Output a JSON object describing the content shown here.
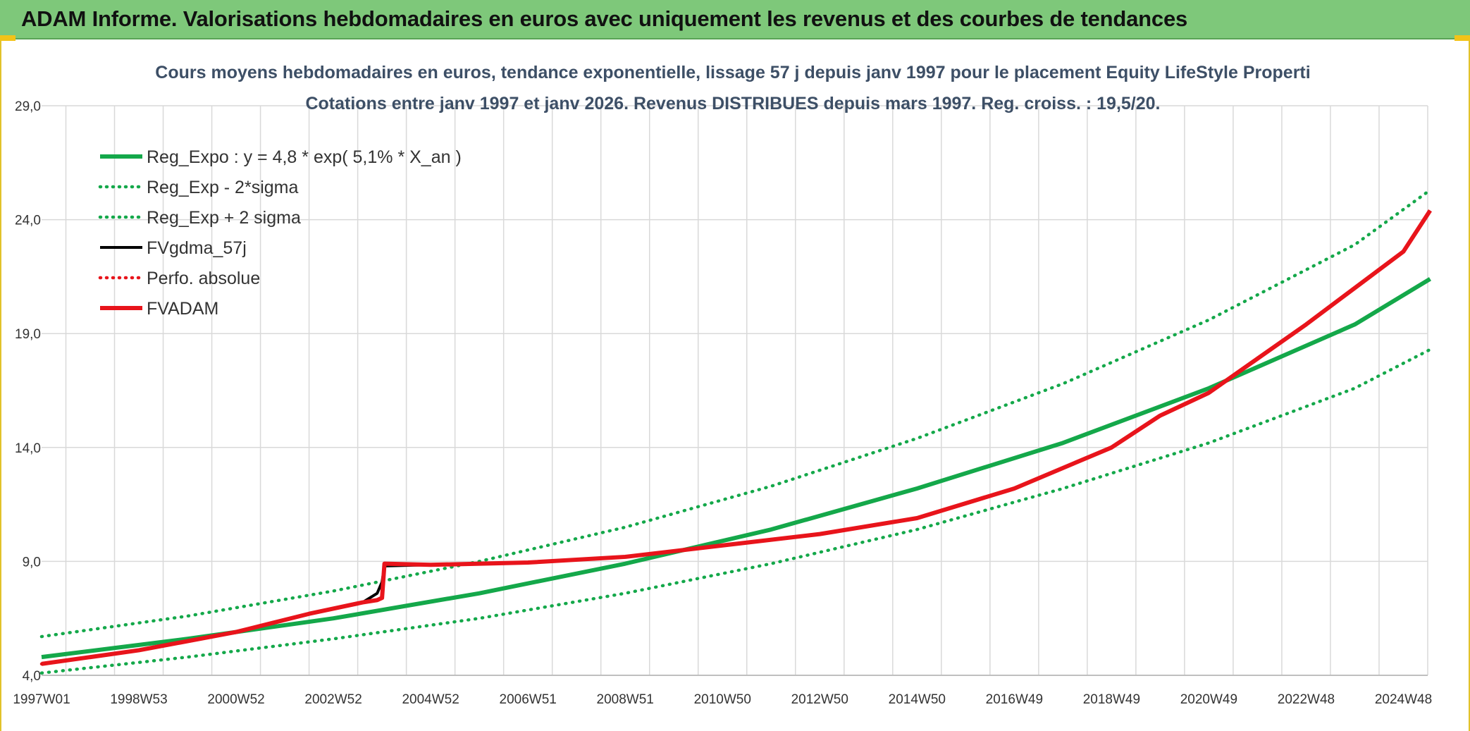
{
  "header": {
    "title": "ADAM Informe. Valorisations hebdomadaires en euros avec uniquement les revenus et des courbes de tendances"
  },
  "colors": {
    "banner": "#7ec87a",
    "trend": "#14a84a",
    "smoothed": "#000000",
    "adam": "#e8141b",
    "grid": "#d9d9d9"
  },
  "chart_data": {
    "type": "line",
    "title": "Cours moyens hebdomadaires en euros, tendance exponentielle, lissage 57 j depuis janv 1997 pour le placement Equity LifeStyle Properti",
    "subtitle": "Cotations entre janv 1997 et janv 2026. Revenus DISTRIBUES depuis mars 1997. Reg. croiss. : 19,5/20.",
    "xlabel": "",
    "ylabel": "",
    "ylim": [
      4.0,
      29.0
    ],
    "y_ticks": [
      "4,0",
      "9,0",
      "14,0",
      "19,0",
      "24,0",
      "29,0"
    ],
    "y_tick_values": [
      4,
      9,
      14,
      19,
      24,
      29
    ],
    "x_ticks": [
      "1997W01",
      "1998W53",
      "2000W52",
      "2002W52",
      "2004W52",
      "2006W51",
      "2008W51",
      "2010W50",
      "2012W50",
      "2014W50",
      "2016W49",
      "2018W49",
      "2020W49",
      "2022W48",
      "2024W48"
    ],
    "x_tick_years": [
      1997.0,
      1999.0,
      2001.0,
      2003.0,
      2005.0,
      2007.0,
      2009.0,
      2011.0,
      2013.0,
      2015.0,
      2017.0,
      2019.0,
      2021.0,
      2023.0,
      2025.0
    ],
    "x_range_years": [
      1997.0,
      2026.0
    ],
    "grid": true,
    "legend_position": "top-left",
    "series": [
      {
        "name": "Reg_Expo : y = 4,8 * exp( 5,1% *  X_an )",
        "style": "solid-thick",
        "color": "#14a84a",
        "x": [
          1997.0,
          2000.0,
          2003.0,
          2006.0,
          2009.0,
          2012.0,
          2015.0,
          2018.0,
          2021.0,
          2024.0,
          2026.0
        ],
        "values": [
          4.8,
          5.6,
          6.5,
          7.6,
          8.9,
          10.4,
          12.2,
          14.2,
          16.6,
          19.4,
          21.4
        ]
      },
      {
        "name": "Reg_Exp - 2*sigma",
        "style": "dotted",
        "color": "#14a84a",
        "x": [
          1997.0,
          2000.0,
          2003.0,
          2006.0,
          2009.0,
          2012.0,
          2015.0,
          2018.0,
          2021.0,
          2024.0,
          2026.0
        ],
        "values": [
          4.1,
          4.8,
          5.6,
          6.5,
          7.6,
          8.9,
          10.4,
          12.2,
          14.2,
          16.6,
          18.3
        ]
      },
      {
        "name": "Reg_Exp + 2 sigma",
        "style": "dotted",
        "color": "#14a84a",
        "x": [
          1997.0,
          2000.0,
          2003.0,
          2006.0,
          2009.0,
          2012.0,
          2015.0,
          2018.0,
          2021.0,
          2024.0,
          2026.0
        ],
        "values": [
          5.7,
          6.6,
          7.7,
          9.0,
          10.5,
          12.3,
          14.4,
          16.8,
          19.6,
          22.9,
          25.3
        ]
      },
      {
        "name": "FVgdma_57j",
        "style": "solid",
        "color": "#000000",
        "x": [
          1997.0,
          1999.0,
          2001.0,
          2002.5,
          2003.6,
          2003.9,
          2004.0,
          2004.05,
          2005.0,
          2007.0,
          2009.0,
          2011.0,
          2013.0,
          2015.0,
          2017.0,
          2019.0,
          2020.0,
          2021.0,
          2022.0,
          2023.0,
          2024.0,
          2025.0,
          2026.0
        ],
        "values": [
          4.5,
          5.1,
          5.9,
          6.7,
          7.2,
          7.6,
          8.1,
          8.8,
          8.85,
          8.95,
          9.2,
          9.7,
          10.2,
          10.9,
          12.2,
          14.0,
          15.4,
          16.4,
          17.9,
          19.4,
          21.0,
          22.6,
          24.4
        ]
      },
      {
        "name": "Perfo. absolue",
        "style": "dotted",
        "color": "#e8141b",
        "x": [
          1997.0,
          1999.0,
          2001.0,
          2002.5,
          2003.6,
          2003.9,
          2004.0,
          2004.05,
          2005.0,
          2007.0,
          2009.0,
          2011.0,
          2013.0,
          2015.0,
          2017.0,
          2019.0,
          2020.0,
          2021.0,
          2022.0,
          2023.0,
          2024.0,
          2025.0,
          2026.0
        ],
        "values": [
          4.5,
          5.1,
          5.9,
          6.7,
          7.2,
          7.3,
          7.4,
          8.9,
          8.85,
          8.95,
          9.2,
          9.7,
          10.2,
          10.9,
          12.2,
          14.0,
          15.4,
          16.4,
          17.9,
          19.4,
          21.0,
          22.6,
          24.4
        ]
      },
      {
        "name": "FVADAM",
        "style": "solid-thick",
        "color": "#e8141b",
        "x": [
          1997.0,
          1999.0,
          2001.0,
          2002.5,
          2003.6,
          2003.9,
          2004.0,
          2004.05,
          2005.0,
          2007.0,
          2009.0,
          2011.0,
          2013.0,
          2015.0,
          2017.0,
          2019.0,
          2020.0,
          2021.0,
          2022.0,
          2023.0,
          2024.0,
          2025.0,
          2026.0
        ],
        "values": [
          4.5,
          5.1,
          5.9,
          6.7,
          7.2,
          7.3,
          7.4,
          8.9,
          8.85,
          8.95,
          9.2,
          9.7,
          10.2,
          10.9,
          12.2,
          14.0,
          15.4,
          16.4,
          17.9,
          19.4,
          21.0,
          22.6,
          24.4
        ]
      }
    ]
  }
}
